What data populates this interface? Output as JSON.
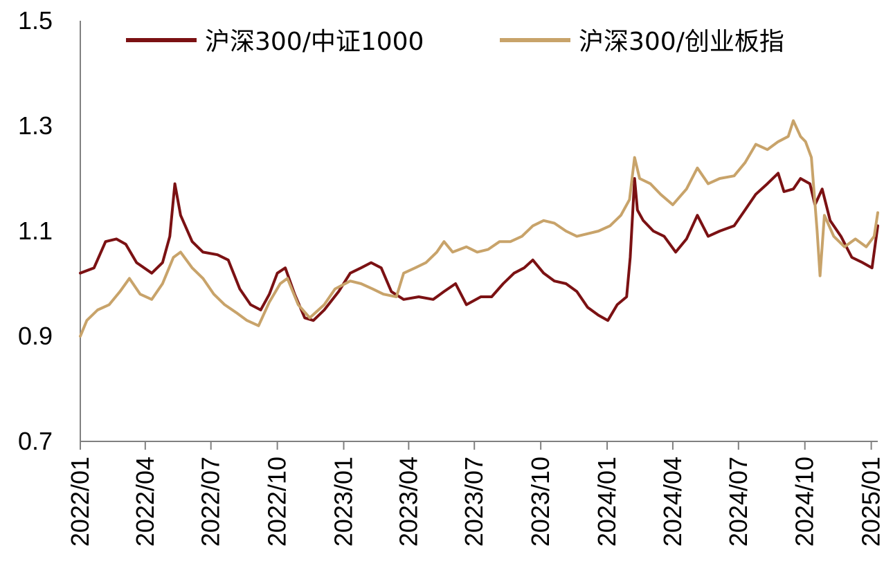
{
  "chart_data": {
    "type": "line",
    "title": "",
    "xlabel": "",
    "ylabel": "",
    "ylim": [
      0.7,
      1.5
    ],
    "y_ticks": [
      "1.5",
      "1.3",
      "1.1",
      "0.9",
      "0.7"
    ],
    "x_range": [
      "2022-01-01",
      "2025-01-10"
    ],
    "x_tick_labels": [
      "2022/01",
      "2022/04",
      "2022/07",
      "2022/10",
      "2023/01",
      "2023/04",
      "2023/07",
      "2023/10",
      "2024/01",
      "2024/04",
      "2024/07",
      "2024/10",
      "2025/01"
    ],
    "grid": false,
    "legend_position": "top",
    "series": [
      {
        "name": "沪深300/中证1000",
        "color": "#7B1113",
        "points": [
          [
            "2022-01-01",
            1.02
          ],
          [
            "2022-01-20",
            1.03
          ],
          [
            "2022-02-05",
            1.08
          ],
          [
            "2022-02-20",
            1.085
          ],
          [
            "2022-03-05",
            1.075
          ],
          [
            "2022-03-20",
            1.04
          ],
          [
            "2022-04-10",
            1.02
          ],
          [
            "2022-04-25",
            1.04
          ],
          [
            "2022-05-05",
            1.09
          ],
          [
            "2022-05-12",
            1.19
          ],
          [
            "2022-05-20",
            1.13
          ],
          [
            "2022-06-05",
            1.08
          ],
          [
            "2022-06-20",
            1.06
          ],
          [
            "2022-07-10",
            1.055
          ],
          [
            "2022-07-25",
            1.045
          ],
          [
            "2022-08-10",
            0.99
          ],
          [
            "2022-08-25",
            0.96
          ],
          [
            "2022-09-08",
            0.95
          ],
          [
            "2022-09-20",
            0.98
          ],
          [
            "2022-10-01",
            1.02
          ],
          [
            "2022-10-12",
            1.03
          ],
          [
            "2022-10-25",
            0.98
          ],
          [
            "2022-11-08",
            0.935
          ],
          [
            "2022-11-20",
            0.93
          ],
          [
            "2022-12-05",
            0.95
          ],
          [
            "2022-12-25",
            0.985
          ],
          [
            "2023-01-10",
            1.02
          ],
          [
            "2023-01-25",
            1.03
          ],
          [
            "2023-02-08",
            1.04
          ],
          [
            "2023-02-22",
            1.03
          ],
          [
            "2023-03-08",
            0.985
          ],
          [
            "2023-03-25",
            0.97
          ],
          [
            "2023-04-15",
            0.975
          ],
          [
            "2023-05-05",
            0.97
          ],
          [
            "2023-05-20",
            0.985
          ],
          [
            "2023-06-05",
            1.0
          ],
          [
            "2023-06-20",
            0.96
          ],
          [
            "2023-07-10",
            0.975
          ],
          [
            "2023-07-25",
            0.975
          ],
          [
            "2023-08-10",
            1.0
          ],
          [
            "2023-08-25",
            1.02
          ],
          [
            "2023-09-08",
            1.03
          ],
          [
            "2023-09-20",
            1.045
          ],
          [
            "2023-10-05",
            1.02
          ],
          [
            "2023-10-20",
            1.005
          ],
          [
            "2023-11-05",
            1.0
          ],
          [
            "2023-11-20",
            0.985
          ],
          [
            "2023-12-05",
            0.955
          ],
          [
            "2023-12-20",
            0.94
          ],
          [
            "2024-01-02",
            0.93
          ],
          [
            "2024-01-15",
            0.96
          ],
          [
            "2024-01-28",
            0.975
          ],
          [
            "2024-02-02",
            1.05
          ],
          [
            "2024-02-08",
            1.2
          ],
          [
            "2024-02-12",
            1.14
          ],
          [
            "2024-02-20",
            1.12
          ],
          [
            "2024-03-05",
            1.1
          ],
          [
            "2024-03-20",
            1.09
          ],
          [
            "2024-04-05",
            1.06
          ],
          [
            "2024-04-20",
            1.085
          ],
          [
            "2024-05-05",
            1.13
          ],
          [
            "2024-05-20",
            1.09
          ],
          [
            "2024-06-05",
            1.1
          ],
          [
            "2024-06-25",
            1.11
          ],
          [
            "2024-07-10",
            1.14
          ],
          [
            "2024-07-25",
            1.17
          ],
          [
            "2024-08-10",
            1.19
          ],
          [
            "2024-08-25",
            1.21
          ],
          [
            "2024-09-02",
            1.175
          ],
          [
            "2024-09-15",
            1.18
          ],
          [
            "2024-09-25",
            1.2
          ],
          [
            "2024-10-08",
            1.19
          ],
          [
            "2024-10-15",
            1.15
          ],
          [
            "2024-10-25",
            1.18
          ],
          [
            "2024-11-05",
            1.12
          ],
          [
            "2024-11-20",
            1.09
          ],
          [
            "2024-12-05",
            1.05
          ],
          [
            "2024-12-20",
            1.04
          ],
          [
            "2025-01-02",
            1.03
          ],
          [
            "2025-01-10",
            1.11
          ]
        ]
      },
      {
        "name": "沪深300/创业板指",
        "color": "#C8A36A",
        "points": [
          [
            "2022-01-01",
            0.9
          ],
          [
            "2022-01-10",
            0.93
          ],
          [
            "2022-01-25",
            0.95
          ],
          [
            "2022-02-10",
            0.96
          ],
          [
            "2022-02-25",
            0.985
          ],
          [
            "2022-03-10",
            1.01
          ],
          [
            "2022-03-25",
            0.98
          ],
          [
            "2022-04-10",
            0.97
          ],
          [
            "2022-04-25",
            1.0
          ],
          [
            "2022-05-10",
            1.05
          ],
          [
            "2022-05-20",
            1.06
          ],
          [
            "2022-06-05",
            1.03
          ],
          [
            "2022-06-20",
            1.01
          ],
          [
            "2022-07-05",
            0.98
          ],
          [
            "2022-07-20",
            0.96
          ],
          [
            "2022-08-05",
            0.945
          ],
          [
            "2022-08-20",
            0.93
          ],
          [
            "2022-09-05",
            0.92
          ],
          [
            "2022-09-20",
            0.965
          ],
          [
            "2022-10-05",
            1.0
          ],
          [
            "2022-10-15",
            1.01
          ],
          [
            "2022-10-30",
            0.96
          ],
          [
            "2022-11-15",
            0.935
          ],
          [
            "2022-12-05",
            0.96
          ],
          [
            "2022-12-20",
            0.99
          ],
          [
            "2023-01-10",
            1.005
          ],
          [
            "2023-01-25",
            1.0
          ],
          [
            "2023-02-10",
            0.99
          ],
          [
            "2023-02-25",
            0.98
          ],
          [
            "2023-03-15",
            0.975
          ],
          [
            "2023-03-25",
            1.02
          ],
          [
            "2023-04-10",
            1.03
          ],
          [
            "2023-04-25",
            1.04
          ],
          [
            "2023-05-10",
            1.06
          ],
          [
            "2023-05-20",
            1.08
          ],
          [
            "2023-06-01",
            1.06
          ],
          [
            "2023-06-20",
            1.07
          ],
          [
            "2023-07-05",
            1.06
          ],
          [
            "2023-07-20",
            1.065
          ],
          [
            "2023-08-05",
            1.08
          ],
          [
            "2023-08-20",
            1.08
          ],
          [
            "2023-09-05",
            1.09
          ],
          [
            "2023-09-20",
            1.11
          ],
          [
            "2023-10-05",
            1.12
          ],
          [
            "2023-10-20",
            1.115
          ],
          [
            "2023-11-05",
            1.1
          ],
          [
            "2023-11-20",
            1.09
          ],
          [
            "2023-12-05",
            1.095
          ],
          [
            "2023-12-20",
            1.1
          ],
          [
            "2024-01-05",
            1.11
          ],
          [
            "2024-01-20",
            1.13
          ],
          [
            "2024-02-01",
            1.16
          ],
          [
            "2024-02-08",
            1.24
          ],
          [
            "2024-02-15",
            1.2
          ],
          [
            "2024-03-01",
            1.19
          ],
          [
            "2024-03-15",
            1.17
          ],
          [
            "2024-04-01",
            1.15
          ],
          [
            "2024-04-20",
            1.18
          ],
          [
            "2024-05-05",
            1.22
          ],
          [
            "2024-05-20",
            1.19
          ],
          [
            "2024-06-05",
            1.2
          ],
          [
            "2024-06-25",
            1.205
          ],
          [
            "2024-07-10",
            1.23
          ],
          [
            "2024-07-25",
            1.265
          ],
          [
            "2024-08-10",
            1.255
          ],
          [
            "2024-08-25",
            1.27
          ],
          [
            "2024-09-08",
            1.28
          ],
          [
            "2024-09-15",
            1.31
          ],
          [
            "2024-09-25",
            1.28
          ],
          [
            "2024-10-02",
            1.27
          ],
          [
            "2024-10-10",
            1.24
          ],
          [
            "2024-10-18",
            1.1
          ],
          [
            "2024-10-22",
            1.015
          ],
          [
            "2024-10-28",
            1.13
          ],
          [
            "2024-11-10",
            1.09
          ],
          [
            "2024-11-25",
            1.07
          ],
          [
            "2024-12-10",
            1.085
          ],
          [
            "2024-12-25",
            1.07
          ],
          [
            "2025-01-05",
            1.09
          ],
          [
            "2025-01-10",
            1.135
          ]
        ]
      }
    ]
  }
}
